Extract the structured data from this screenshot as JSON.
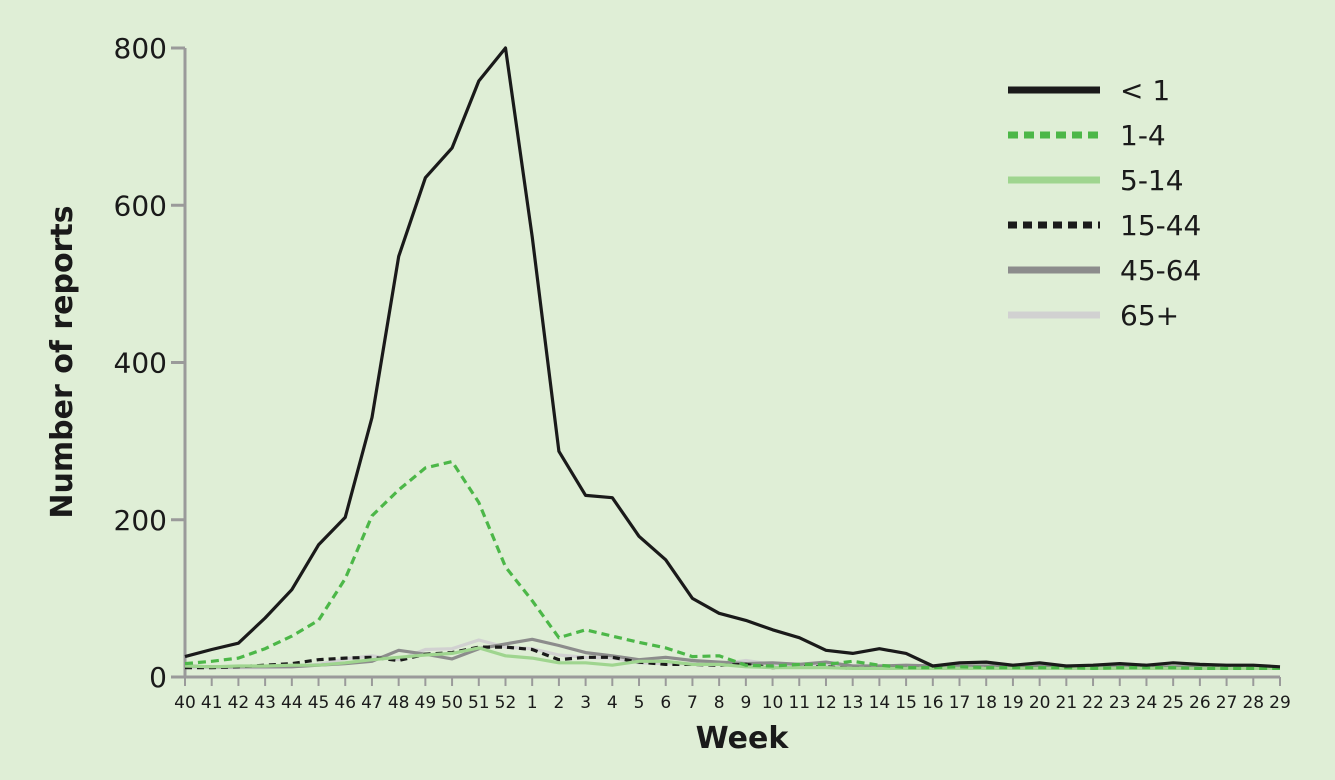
{
  "chart_data": {
    "type": "line",
    "xlabel": "Week",
    "ylabel": "Number of reports",
    "ylim": [
      0,
      800
    ],
    "yticks": [
      0,
      200,
      400,
      600,
      800
    ],
    "categories": [
      "40",
      "41",
      "42",
      "43",
      "44",
      "45",
      "46",
      "47",
      "48",
      "49",
      "50",
      "51",
      "52",
      "1",
      "2",
      "3",
      "4",
      "5",
      "6",
      "7",
      "8",
      "9",
      "10",
      "11",
      "12",
      "13",
      "14",
      "15",
      "16",
      "17",
      "18",
      "19",
      "20",
      "21",
      "22",
      "23",
      "24",
      "25",
      "26",
      "27",
      "28",
      "29"
    ],
    "legend_position": "top-right",
    "grid": false,
    "series": [
      {
        "name": "< 1",
        "color": "#1a1a1a",
        "style": "solid",
        "values": [
          26,
          35,
          43,
          75,
          111,
          168,
          203,
          330,
          535,
          635,
          673,
          758,
          800,
          560,
          287,
          231,
          228,
          179,
          149,
          100,
          81,
          72,
          60,
          50,
          34,
          30,
          36,
          30,
          14,
          18,
          19,
          15,
          18,
          14,
          15,
          17,
          15,
          18,
          16,
          15,
          15,
          13
        ]
      },
      {
        "name": "1-4",
        "color": "#4cb748",
        "style": "dashed",
        "values": [
          17,
          20,
          24,
          36,
          52,
          72,
          125,
          205,
          238,
          266,
          274,
          222,
          140,
          97,
          50,
          60,
          52,
          44,
          37,
          26,
          27,
          15,
          14,
          16,
          16,
          20,
          15,
          12,
          12,
          13,
          12,
          12,
          12,
          12,
          11,
          12,
          12,
          12,
          11,
          11,
          11,
          11
        ]
      },
      {
        "name": "5-14",
        "color": "#9fd58f",
        "style": "solid",
        "values": [
          14,
          13,
          14,
          14,
          15,
          15,
          18,
          22,
          25,
          28,
          30,
          37,
          27,
          24,
          18,
          18,
          15,
          20,
          20,
          16,
          16,
          13,
          12,
          12,
          12,
          11,
          11,
          11,
          11,
          11,
          11,
          11,
          11,
          11,
          11,
          11,
          11,
          11,
          11,
          11,
          11,
          11
        ]
      },
      {
        "name": "15-44",
        "color": "#1a1a1a",
        "style": "dotted",
        "values": [
          12,
          12,
          13,
          15,
          17,
          22,
          24,
          25,
          21,
          29,
          31,
          38,
          38,
          35,
          22,
          25,
          25,
          19,
          16,
          16,
          15,
          16,
          12,
          13,
          13,
          11,
          11,
          11,
          11,
          11,
          11,
          11,
          11,
          11,
          11,
          11,
          11,
          11,
          11,
          11,
          11,
          11
        ]
      },
      {
        "name": "45-64",
        "color": "#8c8c8c",
        "style": "solid",
        "values": [
          14,
          13,
          13,
          13,
          13,
          15,
          17,
          20,
          34,
          29,
          23,
          36,
          42,
          48,
          40,
          31,
          27,
          22,
          25,
          21,
          19,
          17,
          18,
          16,
          19,
          14,
          14,
          15,
          14,
          14,
          14,
          14,
          14,
          14,
          13,
          13,
          13,
          13,
          13,
          12,
          12,
          12
        ]
      },
      {
        "name": "65+",
        "color": "#d1d1d1",
        "style": "solid",
        "values": [
          12,
          12,
          12,
          12,
          13,
          16,
          23,
          27,
          22,
          35,
          36,
          47,
          38,
          36,
          28,
          25,
          24,
          18,
          17,
          17,
          16,
          21,
          16,
          16,
          16,
          14,
          14,
          14,
          13,
          13,
          13,
          13,
          13,
          13,
          13,
          13,
          13,
          13,
          13,
          13,
          13,
          12
        ]
      }
    ]
  }
}
